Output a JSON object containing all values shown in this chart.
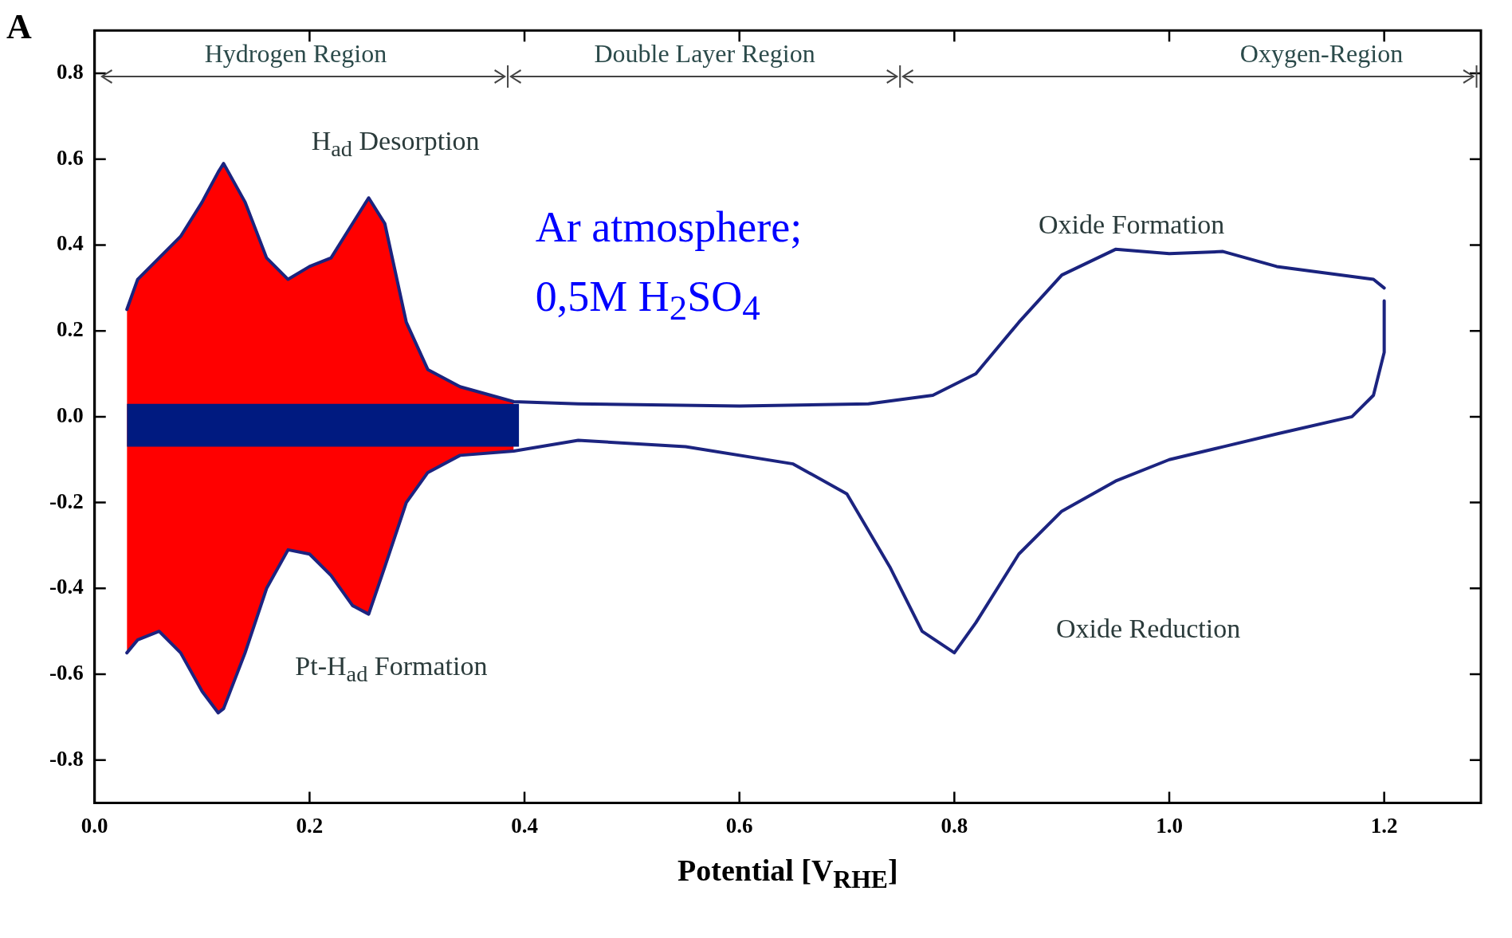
{
  "chart_data": {
    "type": "line",
    "title": "A",
    "xlabel": "Potential [V$_{RHE}$]",
    "xlim": [
      0,
      1.29
    ],
    "ylim": [
      -0.9,
      0.9
    ],
    "xticks": [
      {
        "value": 0,
        "label": "0.0"
      },
      0.2,
      0.4,
      0.6,
      0.8,
      {
        "value": 1,
        "label": "1.0"
      },
      1.2
    ],
    "yticks": [
      -0.8,
      -0.6,
      -0.4,
      -0.2,
      {
        "value": 0,
        "label": "0.0"
      },
      0.2,
      0.4,
      0.6,
      0.8
    ],
    "grid": false,
    "series": [
      {
        "type": "area",
        "color": "#ff0000",
        "x": [
          0.03,
          0.04,
          0.06,
          0.08,
          0.1,
          0.115,
          0.12,
          0.14,
          0.16,
          0.18,
          0.2,
          0.22,
          0.24,
          0.255,
          0.27,
          0.29,
          0.31,
          0.34,
          0.39
        ],
        "values": [
          0.25,
          0.32,
          0.37,
          0.42,
          0.5,
          0.57,
          0.59,
          0.5,
          0.37,
          0.32,
          0.35,
          0.37,
          0.45,
          0.51,
          0.45,
          0.22,
          0.11,
          0.07,
          0.035
        ]
      },
      {
        "type": "area",
        "color": "#ff0000",
        "x": [
          0.03,
          0.04,
          0.06,
          0.08,
          0.1,
          0.115,
          0.12,
          0.14,
          0.16,
          0.18,
          0.2,
          0.22,
          0.24,
          0.255,
          0.27,
          0.29,
          0.31,
          0.34,
          0.39
        ],
        "values": [
          -0.55,
          -0.52,
          -0.5,
          -0.55,
          -0.64,
          -0.69,
          -0.68,
          -0.55,
          -0.4,
          -0.31,
          -0.32,
          -0.37,
          -0.44,
          -0.46,
          -0.35,
          -0.2,
          -0.13,
          -0.09,
          -0.08
        ]
      },
      {
        "color": "#1a237e",
        "x": [
          0.03,
          0.04,
          0.06,
          0.08,
          0.1,
          0.115,
          0.12,
          0.14,
          0.16,
          0.18,
          0.2,
          0.22,
          0.24,
          0.255,
          0.27,
          0.29,
          0.31,
          0.34,
          0.39,
          0.45,
          0.6,
          0.72,
          0.78,
          0.82,
          0.86,
          0.9,
          0.95,
          1.0,
          1.05,
          1.1,
          1.19,
          1.2
        ],
        "values": [
          0.25,
          0.32,
          0.37,
          0.42,
          0.5,
          0.57,
          0.59,
          0.5,
          0.37,
          0.32,
          0.35,
          0.37,
          0.45,
          0.51,
          0.45,
          0.22,
          0.11,
          0.07,
          0.035,
          0.03,
          0.025,
          0.03,
          0.05,
          0.1,
          0.22,
          0.33,
          0.39,
          0.38,
          0.385,
          0.35,
          0.32,
          0.3
        ]
      },
      {
        "color": "#1c2480",
        "x": [
          0.03,
          0.04,
          0.06,
          0.08,
          0.1,
          0.115,
          0.12,
          0.14,
          0.16,
          0.18,
          0.2,
          0.22,
          0.24,
          0.255,
          0.27,
          0.29,
          0.31,
          0.34,
          0.39,
          0.45,
          0.55,
          0.65,
          0.7,
          0.74,
          0.77,
          0.8,
          0.82,
          0.86,
          0.9,
          0.95,
          1.0,
          1.05,
          1.1,
          1.17,
          1.19,
          1.2,
          1.2
        ],
        "values": [
          -0.55,
          -0.52,
          -0.5,
          -0.55,
          -0.64,
          -0.69,
          -0.68,
          -0.55,
          -0.4,
          -0.31,
          -0.32,
          -0.37,
          -0.44,
          -0.46,
          -0.35,
          -0.2,
          -0.13,
          -0.09,
          -0.08,
          -0.055,
          -0.07,
          -0.11,
          -0.18,
          -0.35,
          -0.5,
          -0.55,
          -0.48,
          -0.32,
          -0.22,
          -0.15,
          -0.1,
          -0.07,
          -0.04,
          0.0,
          0.05,
          0.15,
          0.27
        ]
      },
      {
        "type": "area",
        "color": "#001a80",
        "x": [
          0.03,
          0.395
        ],
        "values": [
          0.03,
          0.03
        ]
      },
      {
        "type": "area",
        "color": "#001a80",
        "x": [
          0.03,
          0.395
        ],
        "values": [
          -0.07,
          -0.07
        ]
      }
    ],
    "annotations": [
      "Hydrogen Region",
      "Double Layer Region",
      "Oxygen-Region",
      "H$_{ad}$ Desorption",
      "Pt-H$_{ad}$ Formation",
      "Oxide Formation",
      "Oxide Reduction",
      "Ar atmosphere;",
      "0,5M H$_{2}$SO$_{4}$"
    ]
  }
}
